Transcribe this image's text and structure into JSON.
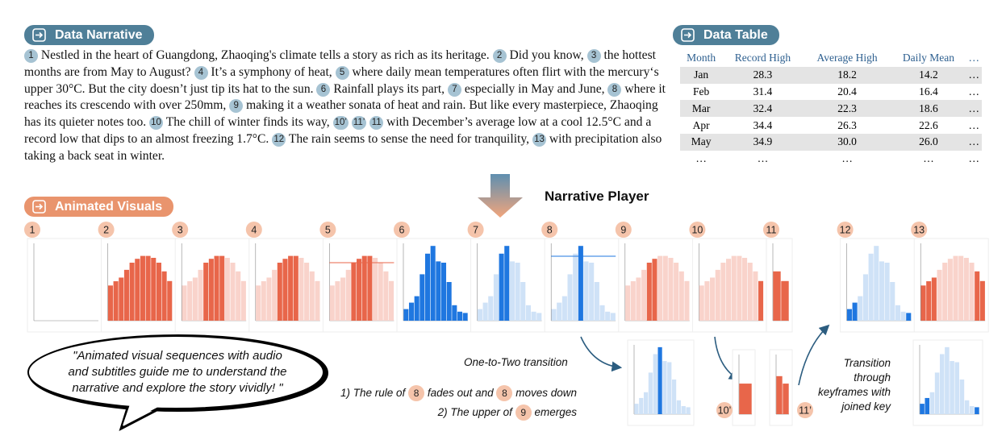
{
  "narrative": {
    "title": "Data Narrative",
    "segments": [
      {
        "badges": [
          "1"
        ],
        "text": "Nestled in the heart of Guangdong, Zhaoqing's climate tells a story as rich as its heritage."
      },
      {
        "badges": [
          "2"
        ],
        "text": "Did you know,"
      },
      {
        "badges": [
          "3"
        ],
        "text": "the hottest months are from May to August?"
      },
      {
        "badges": [
          "4"
        ],
        "text": "It’s a symphony of heat,"
      },
      {
        "badges": [
          "5"
        ],
        "text": "where daily mean temperatures often flirt with the mercury‘s upper 30°C. But the city doesn’t just tip its hat to the sun."
      },
      {
        "badges": [
          "6"
        ],
        "text": "Rainfall plays its part,"
      },
      {
        "badges": [
          "7"
        ],
        "text": "especially in May and June,"
      },
      {
        "badges": [
          "8"
        ],
        "text": "where it reaches its crescendo with over 250mm,"
      },
      {
        "badges": [
          "9"
        ],
        "text": "making it a weather sonata of heat and rain. But like every masterpiece, Zhaoqing has its quieter notes too."
      },
      {
        "badges": [
          "10"
        ],
        "text": "The chill of winter finds its way,"
      },
      {
        "badges": [
          "10’",
          "11’",
          "11"
        ],
        "text": "with December’s average low at a cool 12.5°C and a record low that dips to an almost freezing 1.7°C."
      },
      {
        "badges": [
          "12"
        ],
        "text": "The rain seems to sense the need for tranquility,"
      },
      {
        "badges": [
          "13"
        ],
        "text": "with precipitation also taking a back seat in winter."
      }
    ]
  },
  "table": {
    "title": "Data Table",
    "columns": [
      "Month",
      "Record High",
      "Average High",
      "Daily Mean",
      "…"
    ],
    "rows": [
      [
        "Jan",
        "28.3",
        "18.2",
        "14.2",
        "…"
      ],
      [
        "Feb",
        "31.4",
        "20.4",
        "16.4",
        "…"
      ],
      [
        "Mar",
        "32.4",
        "22.3",
        "18.6",
        "…"
      ],
      [
        "Apr",
        "34.4",
        "26.3",
        "22.6",
        "…"
      ],
      [
        "May",
        "34.9",
        "30.0",
        "26.0",
        "…"
      ],
      [
        "…",
        "…",
        "…",
        "…",
        "…"
      ]
    ]
  },
  "player_title": "Narrative Player",
  "visuals": {
    "title": "Animated Visuals",
    "series": {
      "temperature": {
        "color": "#e8664a",
        "faded": "#f9d3cb",
        "ylim": [
          0,
          40
        ],
        "values": [
          18.2,
          20.4,
          22.3,
          26.3,
          30.0,
          32.0,
          33.5,
          33.5,
          32.5,
          30.0,
          25.5,
          20.5
        ]
      },
      "precipitation": {
        "color": "#1f77e0",
        "faded": "#cfe2f7",
        "ylim": [
          0,
          300
        ],
        "values": [
          45,
          70,
          95,
          180,
          260,
          290,
          230,
          225,
          150,
          60,
          35,
          30
        ]
      }
    },
    "panels": [
      {
        "label": "1",
        "data": "temperature",
        "style": "empty",
        "highlight": []
      },
      {
        "label": "2",
        "data": "temperature",
        "style": "full",
        "highlight": []
      },
      {
        "label": "3",
        "data": "temperature",
        "style": "faded",
        "highlight": [
          4,
          5,
          6,
          7
        ]
      },
      {
        "label": "4",
        "data": "temperature",
        "style": "faded",
        "highlight": [
          4,
          5,
          6,
          7
        ]
      },
      {
        "label": "5",
        "data": "temperature",
        "style": "faded",
        "highlight": [
          4,
          5,
          6,
          7
        ],
        "rule": 30
      },
      {
        "label": "6",
        "data": "precipitation",
        "style": "full",
        "highlight": []
      },
      {
        "label": "7",
        "data": "precipitation",
        "style": "faded",
        "highlight": [
          4,
          5
        ]
      },
      {
        "label": "8",
        "data": "precipitation",
        "style": "faded",
        "highlight": [
          5
        ],
        "rule": 250
      },
      {
        "label": "9",
        "data": "temperature",
        "style": "faded",
        "highlight": [
          4,
          5
        ]
      },
      {
        "label": "10",
        "data": "temperature",
        "style": "faded",
        "highlight": [
          11
        ]
      },
      {
        "label": "11",
        "data": "temperature",
        "style": "only",
        "highlight": [
          10,
          11
        ]
      },
      {
        "label": "12",
        "data": "precipitation",
        "style": "faded",
        "highlight": [
          0,
          1,
          11
        ]
      },
      {
        "label": "13",
        "data": "temperature",
        "style": "faded",
        "highlight": [
          0,
          1,
          2,
          10,
          11
        ]
      }
    ],
    "sub_panels": [
      {
        "data": "precipitation",
        "style": "faded",
        "highlight": [
          5
        ]
      },
      {
        "label": "10’",
        "data": "temperature",
        "style": "only",
        "highlight": [
          11
        ]
      },
      {
        "label": "11’",
        "data": "temperature",
        "style": "only",
        "highlight": [
          10,
          11
        ]
      },
      {
        "data": "precipitation",
        "style": "faded",
        "highlight": [
          0,
          1,
          11
        ]
      }
    ]
  },
  "annotations": {
    "one_to_two": "One-to-Two transition",
    "steps": [
      {
        "marker": "1)",
        "parts": [
          {
            "text": "The rule of"
          },
          {
            "badge": "8"
          },
          {
            "text": "fades out and"
          },
          {
            "badge": "8"
          },
          {
            "text": "moves down"
          }
        ]
      },
      {
        "marker": "2)",
        "parts": [
          {
            "text": "The upper of"
          },
          {
            "badge": "9"
          },
          {
            "text": "emerges"
          }
        ]
      }
    ],
    "keyframes": [
      "Transition",
      "through",
      "keyframes with",
      "joined key"
    ]
  },
  "quote": [
    "\"Animated visual sequences with audio",
    "and subtitles guide me to understand the",
    "narrative and explore the story vividly! \""
  ]
}
